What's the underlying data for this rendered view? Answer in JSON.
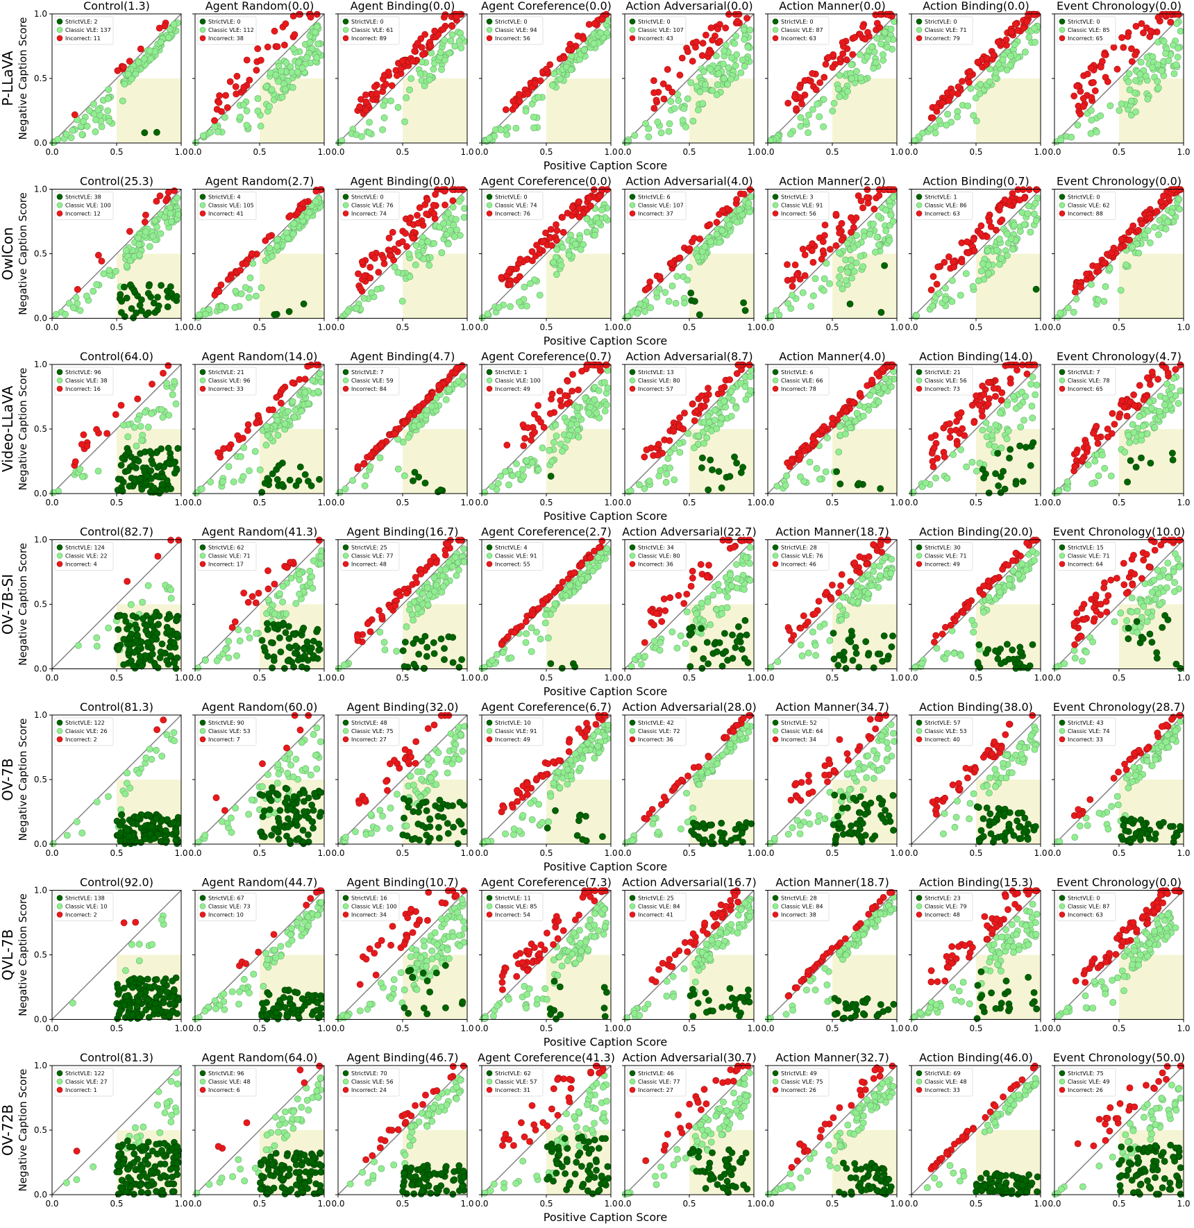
{
  "figure": {
    "xlabel": "Positive Caption Score",
    "ylabel": "Negative Caption Score",
    "ticks": [
      "0.0",
      "0.5",
      "1.0"
    ],
    "legend_labels": [
      "StrictVLE",
      "Classic VLE",
      "Incorrect"
    ],
    "colors": {
      "strict": "#006400",
      "classic": "#90ee90",
      "incorrect": "#e8191c",
      "region": "#f5f5d5",
      "diagonal": "#808080"
    }
  },
  "chart_data": {
    "type": "scatter",
    "xlim": [
      0,
      1
    ],
    "ylim": [
      0,
      1
    ],
    "grid": false,
    "legend_position": "upper-left",
    "shaded_region": {
      "x": [
        0.5,
        1.0
      ],
      "y": [
        0.0,
        0.5
      ]
    },
    "reference_line": "y = x",
    "columns": [
      "Control",
      "Agent Random",
      "Agent Binding",
      "Agent Coreference",
      "Action Adversarial",
      "Action Manner",
      "Action Binding",
      "Event Chronology"
    ],
    "rows": [
      {
        "model": "P-LLaVA",
        "scores": [
          "1.3",
          "0.0",
          "0.0",
          "0.0",
          "0.0",
          "0.0",
          "0.0",
          "0.0"
        ],
        "strict": [
          2,
          0,
          0,
          0,
          0,
          0,
          0,
          0
        ],
        "classic": [
          137,
          112,
          61,
          94,
          107,
          87,
          71,
          85
        ],
        "incorrect": [
          11,
          38,
          89,
          56,
          43,
          63,
          79,
          65
        ]
      },
      {
        "model": "OwlCon",
        "scores": [
          "25.3",
          "2.7",
          "0.0",
          "0.0",
          "4.0",
          "2.0",
          "0.7",
          "0.0"
        ],
        "strict": [
          38,
          4,
          0,
          0,
          6,
          3,
          1,
          0
        ],
        "classic": [
          100,
          105,
          76,
          74,
          107,
          91,
          86,
          62
        ],
        "incorrect": [
          12,
          41,
          74,
          76,
          37,
          56,
          63,
          88
        ]
      },
      {
        "model": "Video-LLaVA",
        "scores": [
          "64.0",
          "14.0",
          "4.7",
          "0.7",
          "8.7",
          "4.0",
          "14.0",
          "4.7"
        ],
        "strict": [
          96,
          21,
          7,
          1,
          13,
          6,
          21,
          7
        ],
        "classic": [
          38,
          96,
          59,
          100,
          80,
          66,
          56,
          78
        ],
        "incorrect": [
          16,
          33,
          84,
          49,
          57,
          78,
          73,
          65
        ]
      },
      {
        "model": "OV-7B-SI",
        "scores": [
          "82.7",
          "41.3",
          "16.7",
          "2.7",
          "22.7",
          "18.7",
          "20.0",
          "10.0"
        ],
        "strict": [
          124,
          62,
          25,
          4,
          34,
          28,
          30,
          15
        ],
        "classic": [
          22,
          71,
          77,
          91,
          80,
          76,
          71,
          71
        ],
        "incorrect": [
          4,
          17,
          48,
          55,
          36,
          46,
          49,
          64
        ]
      },
      {
        "model": "OV-7B",
        "scores": [
          "81.3",
          "60.0",
          "32.0",
          "6.7",
          "28.0",
          "34.7",
          "38.0",
          "28.7"
        ],
        "strict": [
          122,
          90,
          48,
          10,
          42,
          52,
          57,
          43
        ],
        "classic": [
          26,
          53,
          75,
          91,
          72,
          64,
          53,
          74
        ],
        "incorrect": [
          2,
          7,
          27,
          49,
          36,
          34,
          40,
          33
        ]
      },
      {
        "model": "QVL-7B",
        "scores": [
          "92.0",
          "44.7",
          "10.7",
          "7.3",
          "16.7",
          "18.7",
          "15.3",
          "0.0"
        ],
        "strict": [
          138,
          67,
          16,
          11,
          25,
          28,
          23,
          0
        ],
        "classic": [
          10,
          73,
          100,
          85,
          84,
          84,
          79,
          87
        ],
        "incorrect": [
          2,
          10,
          34,
          54,
          41,
          38,
          48,
          63
        ]
      },
      {
        "model": "OV-72B",
        "scores": [
          "81.3",
          "64.0",
          "46.7",
          "41.3",
          "30.7",
          "32.7",
          "46.0",
          "50.0"
        ],
        "strict": [
          122,
          96,
          70,
          62,
          46,
          49,
          69,
          75
        ],
        "classic": [
          27,
          48,
          56,
          57,
          77,
          75,
          48,
          49
        ],
        "incorrect": [
          1,
          6,
          24,
          31,
          27,
          26,
          33,
          26
        ]
      }
    ]
  }
}
